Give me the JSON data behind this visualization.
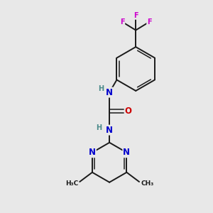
{
  "background_color": "#e8e8e8",
  "bond_color": "#1a1a1a",
  "N_color": "#0000cc",
  "O_color": "#cc0000",
  "F_color": "#cc00cc",
  "H_color": "#4a8a8a",
  "figsize": [
    3.0,
    3.0
  ],
  "dpi": 100,
  "lw": 1.4,
  "lw2": 1.1,
  "fs": 8.5,
  "fs_small": 7.0,
  "xlim": [
    0,
    10
  ],
  "ylim": [
    0,
    10
  ]
}
